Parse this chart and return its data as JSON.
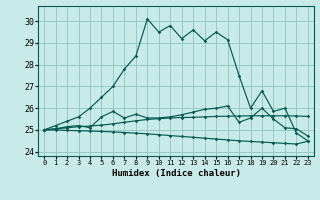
{
  "xlabel": "Humidex (Indice chaleur)",
  "bg_color": "#c8eae8",
  "grid_color": "#96c8c4",
  "line_color": "#005a50",
  "xlim": [
    -0.5,
    23.5
  ],
  "ylim": [
    23.8,
    30.7
  ],
  "yticks": [
    24,
    25,
    26,
    27,
    28,
    29,
    30
  ],
  "xticks": [
    0,
    1,
    2,
    3,
    4,
    5,
    6,
    7,
    8,
    9,
    10,
    11,
    12,
    13,
    14,
    15,
    16,
    17,
    18,
    19,
    20,
    21,
    22,
    23
  ],
  "series1_y": [
    25.0,
    25.05,
    25.1,
    25.15,
    25.18,
    25.22,
    25.28,
    25.35,
    25.42,
    25.48,
    25.52,
    25.55,
    25.57,
    25.58,
    25.6,
    25.62,
    25.63,
    25.64,
    25.65,
    25.65,
    25.65,
    25.65,
    25.64,
    25.62
  ],
  "series2_y": [
    25.0,
    25.0,
    24.98,
    24.96,
    24.95,
    24.93,
    24.91,
    24.88,
    24.85,
    24.82,
    24.78,
    24.74,
    24.7,
    24.66,
    24.62,
    24.58,
    24.54,
    24.5,
    24.47,
    24.44,
    24.41,
    24.38,
    24.35,
    24.48
  ],
  "series3_y": [
    25.0,
    25.2,
    25.4,
    25.6,
    26.0,
    26.5,
    27.0,
    27.8,
    28.4,
    30.1,
    29.5,
    29.8,
    29.2,
    29.6,
    29.1,
    29.5,
    29.15,
    27.5,
    26.0,
    26.8,
    25.85,
    26.0,
    24.85,
    24.5
  ],
  "series4_y": [
    25.0,
    25.05,
    25.15,
    25.2,
    25.1,
    25.6,
    25.85,
    25.55,
    25.72,
    25.55,
    25.55,
    25.6,
    25.7,
    25.82,
    25.95,
    26.0,
    26.1,
    25.35,
    25.55,
    26.0,
    25.5,
    25.1,
    25.05,
    24.72
  ]
}
